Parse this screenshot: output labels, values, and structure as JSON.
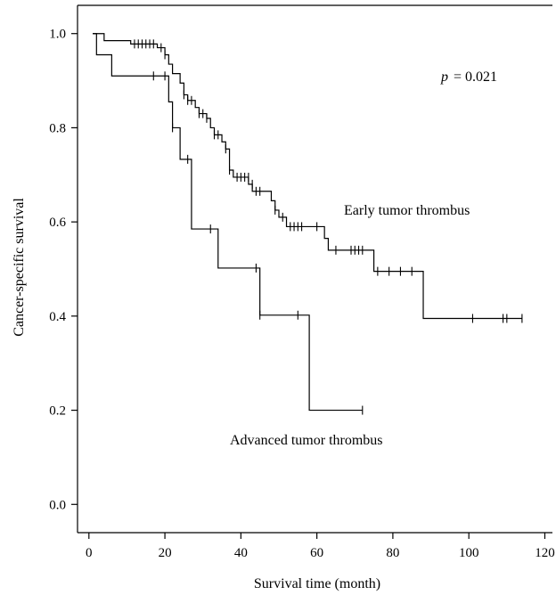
{
  "chart_data": {
    "type": "line",
    "subtype": "kaplan-meier",
    "xlabel": "Survival time (month)",
    "ylabel": "Cancer-specific survival",
    "xlim": [
      -3,
      122
    ],
    "ylim": [
      -0.06,
      1.06
    ],
    "xticks": [
      0,
      20,
      40,
      60,
      80,
      100,
      120
    ],
    "yticks": [
      "0.0",
      "0.2",
      "0.4",
      "0.6",
      "0.8",
      "1.0"
    ],
    "yticks_values": [
      0.0,
      0.2,
      0.4,
      0.6,
      0.8,
      1.0
    ],
    "p_label": "p",
    "p_value": "= 0.021",
    "series": [
      {
        "name": "Early tumor thrombus",
        "steps": [
          [
            1,
            1.0
          ],
          [
            4,
            0.985
          ],
          [
            11,
            0.978
          ],
          [
            18,
            0.97
          ],
          [
            20,
            0.955
          ],
          [
            21,
            0.935
          ],
          [
            22,
            0.915
          ],
          [
            24,
            0.895
          ],
          [
            25,
            0.87
          ],
          [
            26,
            0.858
          ],
          [
            28,
            0.843
          ],
          [
            29,
            0.83
          ],
          [
            31,
            0.82
          ],
          [
            32,
            0.8
          ],
          [
            33,
            0.785
          ],
          [
            35,
            0.77
          ],
          [
            36,
            0.755
          ],
          [
            37,
            0.71
          ],
          [
            38,
            0.695
          ],
          [
            42,
            0.68
          ],
          [
            43,
            0.665
          ],
          [
            48,
            0.645
          ],
          [
            49,
            0.625
          ],
          [
            50,
            0.61
          ],
          [
            52,
            0.59
          ],
          [
            62,
            0.565
          ],
          [
            63,
            0.54
          ],
          [
            75,
            0.495
          ],
          [
            88,
            0.395
          ],
          [
            114,
            0.395
          ]
        ],
        "censored": [
          [
            12,
            0.978
          ],
          [
            13,
            0.978
          ],
          [
            14,
            0.978
          ],
          [
            15,
            0.978
          ],
          [
            16,
            0.978
          ],
          [
            17,
            0.978
          ],
          [
            19,
            0.97
          ],
          [
            20,
            0.955
          ],
          [
            25,
            0.87
          ],
          [
            26,
            0.858
          ],
          [
            27,
            0.858
          ],
          [
            29,
            0.83
          ],
          [
            30,
            0.83
          ],
          [
            31,
            0.82
          ],
          [
            33,
            0.785
          ],
          [
            34,
            0.785
          ],
          [
            36,
            0.755
          ],
          [
            37,
            0.71
          ],
          [
            39,
            0.695
          ],
          [
            40,
            0.695
          ],
          [
            41,
            0.695
          ],
          [
            42,
            0.695
          ],
          [
            43,
            0.68
          ],
          [
            44,
            0.665
          ],
          [
            45,
            0.665
          ],
          [
            49,
            0.625
          ],
          [
            51,
            0.61
          ],
          [
            53,
            0.59
          ],
          [
            54,
            0.59
          ],
          [
            55,
            0.59
          ],
          [
            56,
            0.59
          ],
          [
            60,
            0.59
          ],
          [
            65,
            0.54
          ],
          [
            69,
            0.54
          ],
          [
            70,
            0.54
          ],
          [
            71,
            0.54
          ],
          [
            72,
            0.54
          ],
          [
            76,
            0.495
          ],
          [
            79,
            0.495
          ],
          [
            82,
            0.495
          ],
          [
            85,
            0.495
          ],
          [
            101,
            0.395
          ],
          [
            109,
            0.395
          ],
          [
            110,
            0.395
          ],
          [
            114,
            0.395
          ]
        ]
      },
      {
        "name": "Advanced tumor thrombus",
        "steps": [
          [
            1,
            1.0
          ],
          [
            2,
            0.955
          ],
          [
            6,
            0.91
          ],
          [
            21,
            0.855
          ],
          [
            22,
            0.8
          ],
          [
            24,
            0.733
          ],
          [
            27,
            0.585
          ],
          [
            34,
            0.502
          ],
          [
            45,
            0.402
          ],
          [
            58,
            0.2
          ],
          [
            72,
            0.2
          ]
        ],
        "censored": [
          [
            17,
            0.91
          ],
          [
            20,
            0.91
          ],
          [
            22,
            0.8
          ],
          [
            26,
            0.733
          ],
          [
            32,
            0.585
          ],
          [
            44,
            0.502
          ],
          [
            45,
            0.402
          ],
          [
            55,
            0.402
          ],
          [
            72,
            0.2
          ]
        ]
      }
    ]
  }
}
